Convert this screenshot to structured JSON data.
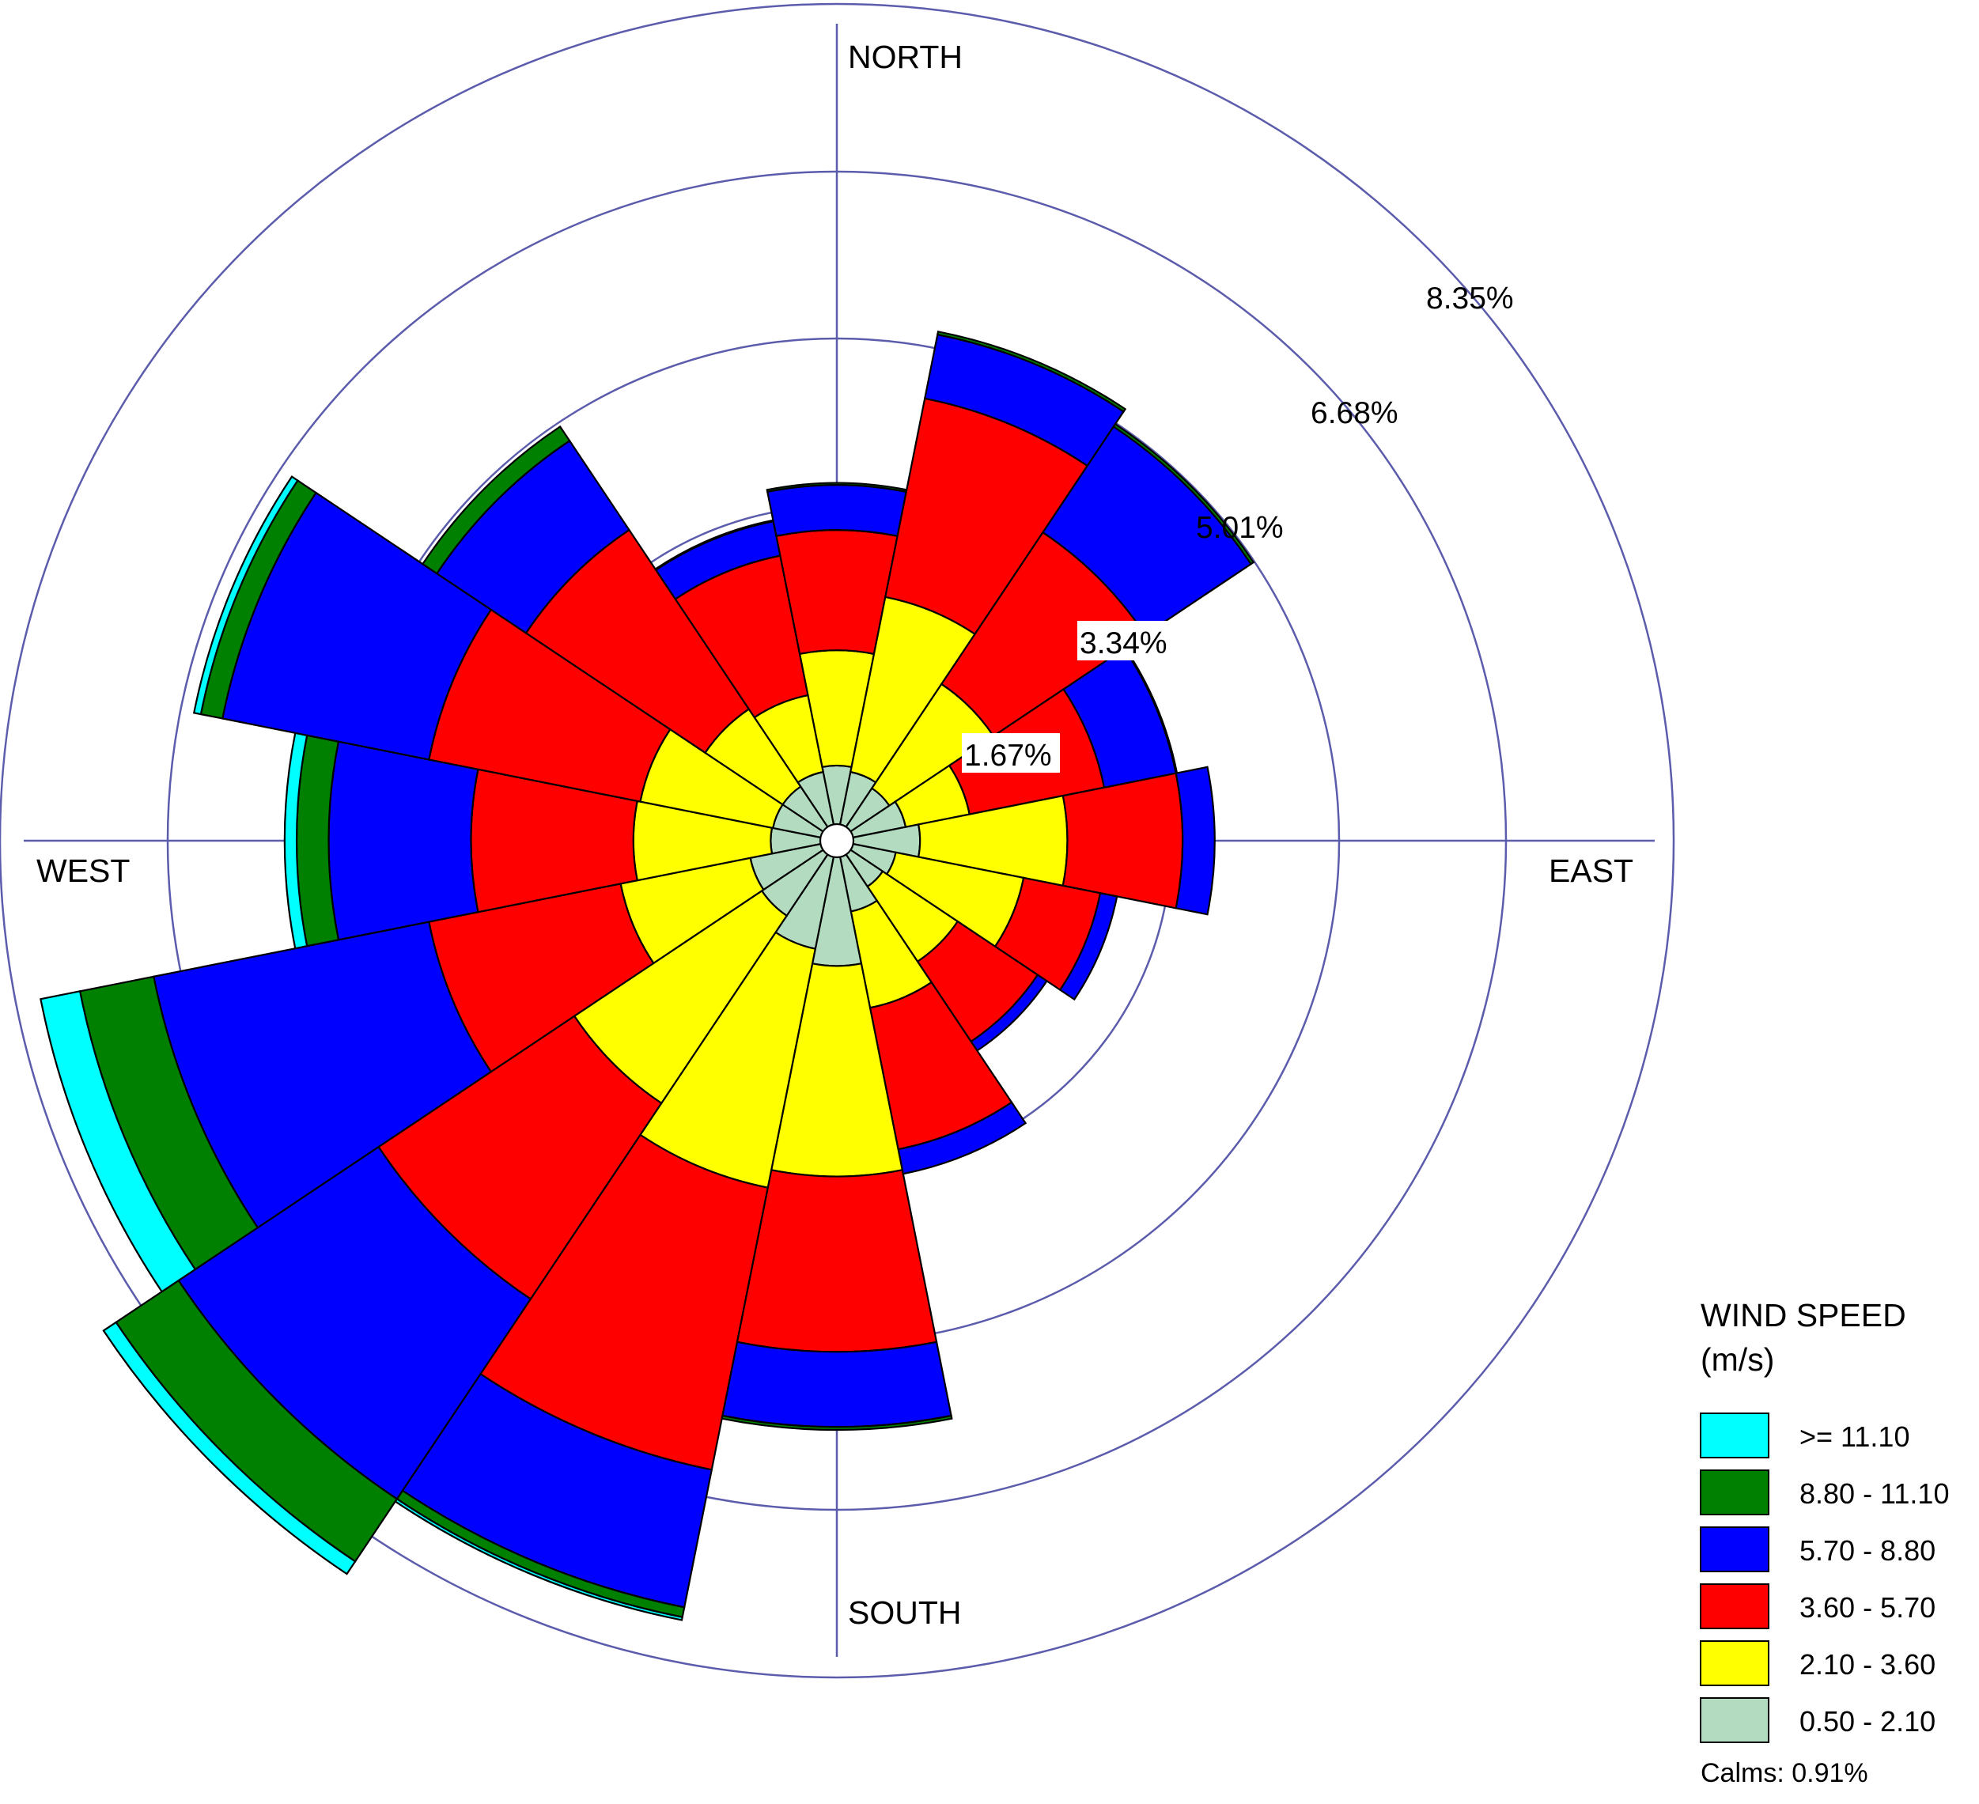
{
  "compass": {
    "north": "NORTH",
    "south": "SOUTH",
    "east": "EAST",
    "west": "WEST"
  },
  "ring_labels": [
    "1.67%",
    "3.34%",
    "5.01%",
    "6.68%",
    "8.35%"
  ],
  "legend": {
    "title_line1": "WIND SPEED",
    "title_line2": "(m/s)",
    "calms": "Calms: 0.91%"
  },
  "colors": {
    "grid": "#5c5cad",
    "outline": "#000000",
    "calm_center": "#ffffff"
  },
  "chart_data": {
    "type": "wind-rose",
    "direction_sectors": 16,
    "sector_centers_deg": [
      0,
      22.5,
      45,
      67.5,
      90,
      112.5,
      135,
      157.5,
      180,
      202.5,
      225,
      247.5,
      270,
      292.5,
      315,
      337.5
    ],
    "radial_unit": "%",
    "radial_ticks": [
      1.67,
      3.34,
      5.01,
      6.68,
      8.35
    ],
    "bins": [
      {
        "label": "0.50 - 2.10",
        "color": "#b3dbc0"
      },
      {
        "label": "2.10 - 3.60",
        "color": "#ffff00"
      },
      {
        "label": "3.60 - 5.70",
        "color": "#ff0000"
      },
      {
        "label": "5.70 - 8.80",
        "color": "#0000ff"
      },
      {
        "label": "8.80 - 11.10",
        "color": "#008000"
      },
      {
        "label": ">= 11.10",
        "color": "#00ffff"
      }
    ],
    "cumulative_percent": [
      [
        0.75,
        1.9,
        3.1,
        3.55,
        3.57,
        3.57
      ],
      [
        0.7,
        2.48,
        4.5,
        5.15,
        5.18,
        5.18
      ],
      [
        0.63,
        1.88,
        3.7,
        4.97,
        5.0,
        5.0
      ],
      [
        0.7,
        1.35,
        2.72,
        3.45,
        3.46,
        3.46
      ],
      [
        0.83,
        2.3,
        3.45,
        3.77,
        3.77,
        3.77
      ],
      [
        0.6,
        1.9,
        2.68,
        2.85,
        2.85,
        2.85
      ],
      [
        0.55,
        1.45,
        2.41,
        2.52,
        2.52,
        2.52
      ],
      [
        0.72,
        1.7,
        3.14,
        3.39,
        3.39,
        3.39
      ],
      [
        1.25,
        3.35,
        5.1,
        5.85,
        5.88,
        5.88
      ],
      [
        1.1,
        3.53,
        6.4,
        7.8,
        7.9,
        7.93
      ],
      [
        0.9,
        3.15,
        5.5,
        7.9,
        8.65,
        8.8
      ],
      [
        0.88,
        2.2,
        4.15,
        6.95,
        7.7,
        8.1
      ],
      [
        0.66,
        2.03,
        3.65,
        5.07,
        5.39,
        5.51
      ],
      [
        0.65,
        2.0,
        4.15,
        6.25,
        6.47,
        6.54
      ],
      [
        0.65,
        1.58,
        3.73,
        4.8,
        4.97,
        4.97
      ],
      [
        0.7,
        1.48,
        2.9,
        3.25,
        3.26,
        3.26
      ]
    ],
    "calms_percent": 0.91
  }
}
